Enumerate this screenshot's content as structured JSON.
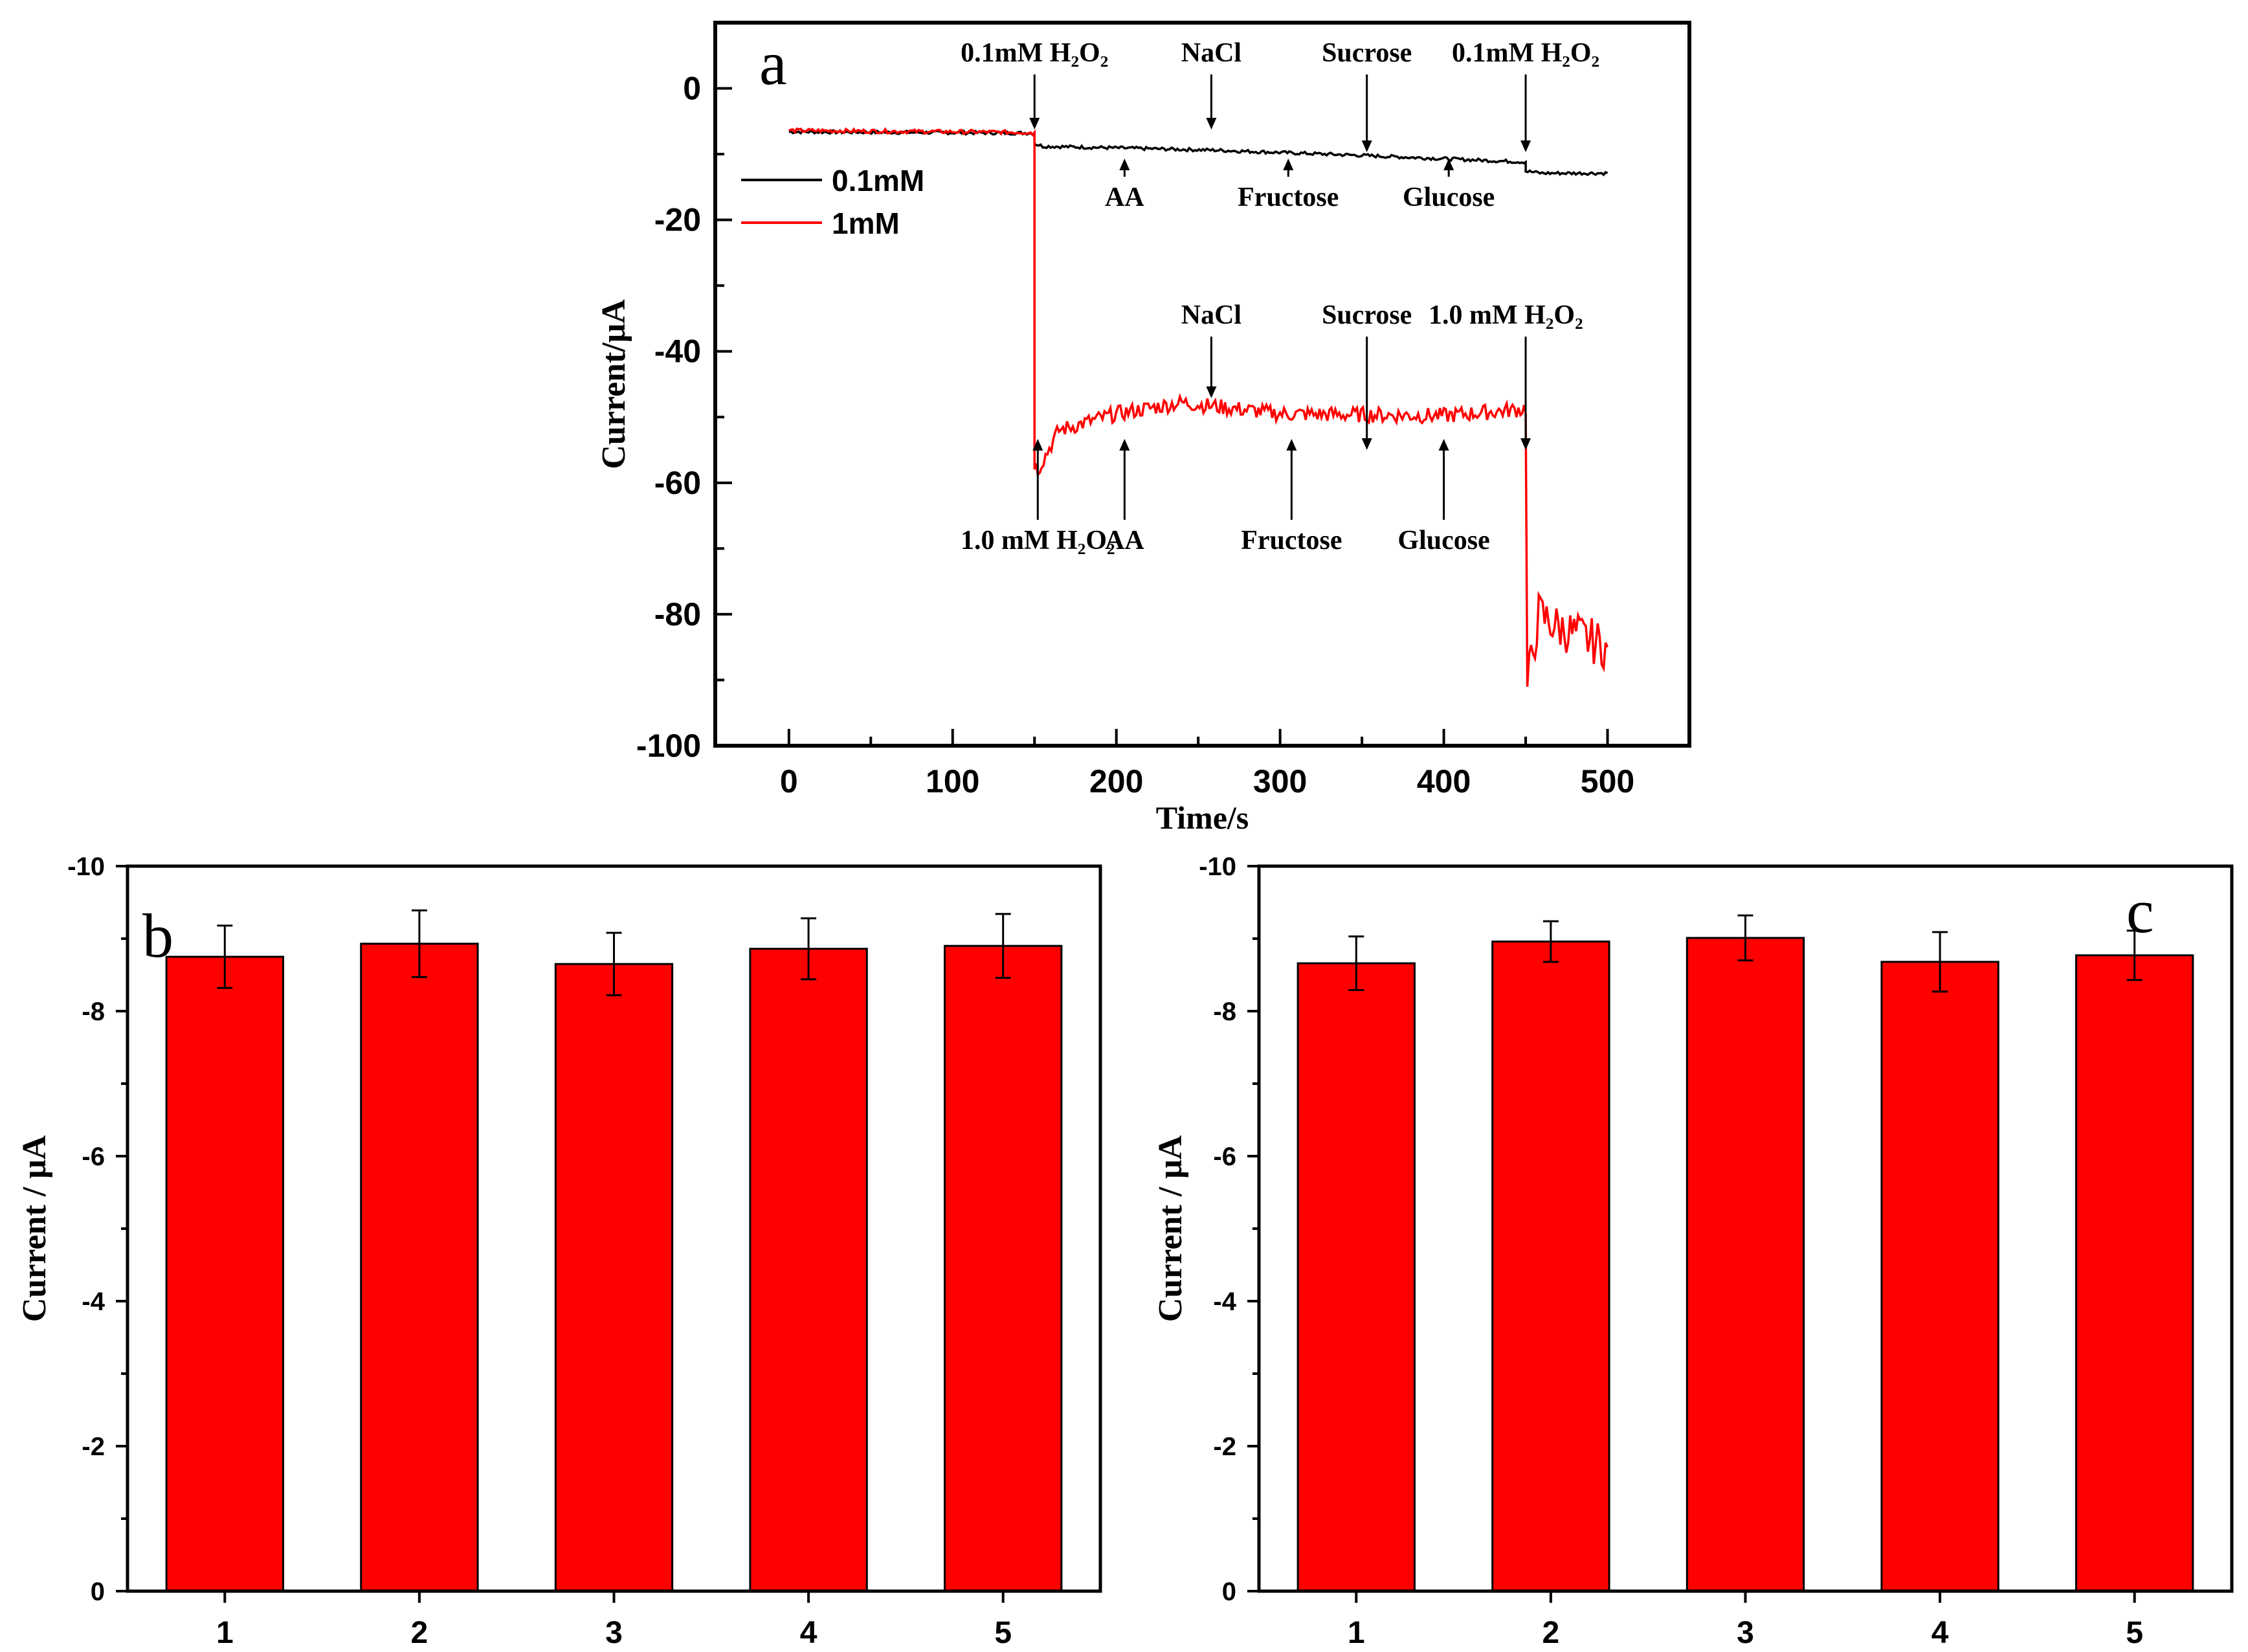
{
  "chart_data": [
    {
      "id": "a",
      "type": "line",
      "panel_label": "a",
      "xlabel": "Time/s",
      "ylabel": "Current/μA",
      "xlim": [
        -45,
        550
      ],
      "ylim": [
        -100,
        10
      ],
      "xticks": [
        0,
        100,
        200,
        300,
        400,
        500
      ],
      "yticks": [
        0,
        -20,
        -40,
        -60,
        -80,
        -100
      ],
      "legend_position": "upper-left",
      "series": [
        {
          "name": "0.1mM",
          "color": "#000000",
          "x": [
            0,
            150,
            150,
            155,
            260,
            350,
            450,
            450,
            460,
            500
          ],
          "y": [
            -6.6,
            -6.8,
            -8.4,
            -8.8,
            -9.4,
            -10.2,
            -11.2,
            -12.6,
            -12.9,
            -12.9
          ]
        },
        {
          "name": "1mM",
          "color": "#ff0000",
          "x": [
            0,
            150,
            150,
            152,
            165,
            200,
            240,
            300,
            400,
            448,
            450,
            451,
            458,
            470,
            500
          ],
          "y": [
            -6.4,
            -6.7,
            -57,
            -58,
            -52,
            -49.5,
            -47.8,
            -49.5,
            -49.8,
            -48.8,
            -48.5,
            -91,
            -80,
            -82,
            -85
          ]
        }
      ],
      "annotations": [
        {
          "text": "0.1mM H₂O₂",
          "x": 150,
          "series": "0.1mM",
          "direction": "down"
        },
        {
          "text": "AA",
          "x": 205,
          "series": "0.1mM",
          "direction": "up"
        },
        {
          "text": "NaCl",
          "x": 258,
          "series": "0.1mM",
          "direction": "down"
        },
        {
          "text": "Fructose",
          "x": 305,
          "series": "0.1mM",
          "direction": "up"
        },
        {
          "text": "Sucrose",
          "x": 353,
          "series": "0.1mM",
          "direction": "down"
        },
        {
          "text": "Glucose",
          "x": 403,
          "series": "0.1mM",
          "direction": "up"
        },
        {
          "text": "0.1mM H₂O₂",
          "x": 450,
          "series": "0.1mM",
          "direction": "down"
        },
        {
          "text": "1.0 mM H₂O₂",
          "x": 152,
          "series": "1mM",
          "direction": "up"
        },
        {
          "text": "AA",
          "x": 205,
          "series": "1mM",
          "direction": "up"
        },
        {
          "text": "NaCl",
          "x": 258,
          "series": "1mM",
          "direction": "down"
        },
        {
          "text": "Fructose",
          "x": 307,
          "series": "1mM",
          "direction": "up"
        },
        {
          "text": "Sucrose",
          "x": 353,
          "series": "1mM",
          "direction": "down"
        },
        {
          "text": "Glucose",
          "x": 400,
          "series": "1mM",
          "direction": "up"
        },
        {
          "text": "1.0 mM H₂O₂",
          "x": 450,
          "series": "1mM",
          "direction": "down"
        }
      ]
    },
    {
      "id": "b",
      "type": "bar",
      "panel_label": "b",
      "xlabel": "",
      "ylabel": "Current / μA",
      "categories": [
        "1",
        "2",
        "3",
        "4",
        "5"
      ],
      "values": [
        -8.75,
        -8.93,
        -8.65,
        -8.86,
        -8.9
      ],
      "errors": [
        0.43,
        0.46,
        0.43,
        0.42,
        0.44
      ],
      "ylim": [
        0,
        -10
      ],
      "yticks": [
        0,
        -2,
        -4,
        -6,
        -8,
        -10
      ],
      "bar_color": "#ff0000"
    },
    {
      "id": "c",
      "type": "bar",
      "panel_label": "c",
      "xlabel": "",
      "ylabel": "Current / μA",
      "categories": [
        "1",
        "2",
        "3",
        "4",
        "5"
      ],
      "values": [
        -8.66,
        -8.96,
        -9.01,
        -8.68,
        -8.77
      ],
      "errors": [
        0.37,
        0.28,
        0.31,
        0.41,
        0.34
      ],
      "ylim": [
        0,
        -10
      ],
      "yticks": [
        0,
        -2,
        -4,
        -6,
        -8,
        -10
      ],
      "bar_color": "#ff0000"
    }
  ]
}
